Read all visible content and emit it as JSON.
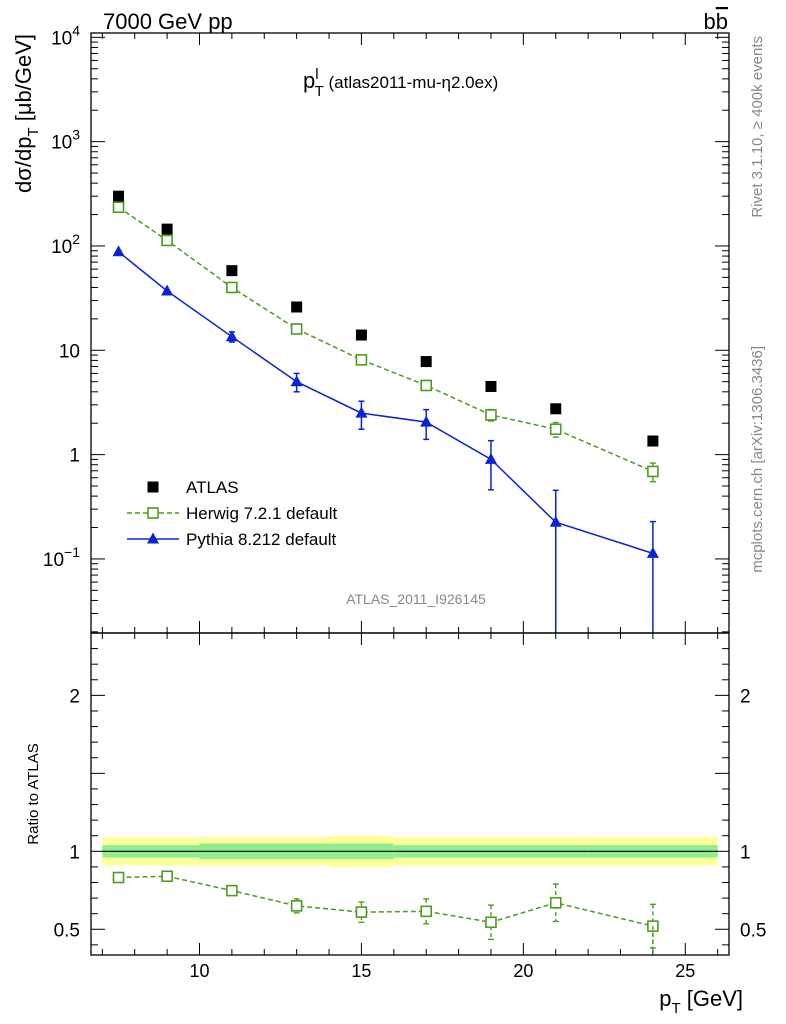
{
  "header": {
    "left": "7000 GeV pp",
    "right_base": "b",
    "right_bar": "b"
  },
  "side": {
    "top": "Rivet 3.1.10, ≥ 400k events",
    "bottom": "mcplots.cern.ch [arXiv:1306.3436]"
  },
  "watermark": "ATLAS_2011_I926145",
  "chart_data": [
    {
      "type": "scatter",
      "title": {
        "main": "p",
        "sup": "l",
        "sub": "T",
        "rest": " (atlas2011-mu-η2.0ex)"
      },
      "ylabel": {
        "main": "dσ/dp",
        "sub": "T",
        "rest": " [μb/GeV]"
      },
      "yscale": "log",
      "xlim": [
        6.65,
        26.35
      ],
      "ylim": [
        0.0195,
        11000
      ],
      "y_ticks": [
        {
          "v": 0.1,
          "base": "10",
          "exp": "−1"
        },
        {
          "v": 1,
          "base": "1",
          "exp": ""
        },
        {
          "v": 10,
          "base": "10",
          "exp": ""
        },
        {
          "v": 100,
          "base": "10",
          "exp": "2"
        },
        {
          "v": 1000,
          "base": "10",
          "exp": "3"
        },
        {
          "v": 10000,
          "base": "10",
          "exp": "4"
        }
      ],
      "legend_position": "lower-left",
      "series": [
        {
          "name": "ATLAS",
          "color": "#000000",
          "marker": "square-filled",
          "x": [
            7.5,
            9,
            11,
            13,
            15,
            17,
            19,
            21,
            24
          ],
          "y": [
            300,
            145,
            58,
            26,
            14,
            7.8,
            4.5,
            2.75,
            1.35
          ]
        },
        {
          "name": "Herwig 7.2.1 default",
          "color": "#4f9a20",
          "marker": "square-open",
          "line": "dashed",
          "x": [
            7.5,
            9,
            11,
            13,
            15,
            17,
            19,
            21,
            24
          ],
          "y": [
            235,
            113,
            40,
            16,
            8.1,
            4.6,
            2.4,
            1.75,
            0.69
          ],
          "err": [
            0,
            0,
            0,
            0,
            0,
            0,
            0.3,
            0.28,
            0.14
          ]
        },
        {
          "name": "Pythia 8.212 default",
          "color": "#0a23d6",
          "marker": "triangle-filled",
          "line": "solid",
          "x": [
            7.5,
            9,
            11,
            13,
            15,
            17,
            19,
            21,
            24
          ],
          "y": [
            88,
            37,
            13.5,
            5.0,
            2.5,
            2.05,
            0.9,
            0.225,
            0.113
          ],
          "err_lo": [
            0,
            0,
            1.5,
            1.0,
            0.75,
            0.65,
            0.44,
            0.21,
            0.1
          ],
          "err_hi": [
            0,
            0,
            1.5,
            1.0,
            0.75,
            0.65,
            0.46,
            0.23,
            0.115
          ]
        }
      ]
    },
    {
      "type": "scatter",
      "ylabel": "Ratio to ATLAS",
      "xlabel": {
        "main": "p",
        "sub": "T",
        "rest": " [GeV]"
      },
      "xlim": [
        6.65,
        26.35
      ],
      "ylim": [
        0.335,
        2.4
      ],
      "x_ticks": [
        10,
        15,
        20,
        25
      ],
      "y_ticks": [
        0.5,
        1,
        2
      ],
      "reference_line": 1,
      "bands": {
        "bin_edges": [
          7,
          10,
          14,
          16,
          22,
          26
        ],
        "stat_half_width": [
          0.04,
          0.05,
          0.05,
          0.04,
          0.04
        ],
        "total_half_width": [
          0.09,
          0.09,
          0.1,
          0.09,
          0.09
        ],
        "stat_color": "#90ee90",
        "total_color": "#ffff99"
      },
      "series": [
        {
          "name": "Herwig 7.2.1 default",
          "color": "#4f9a20",
          "marker": "square-open",
          "line": "dashed",
          "x": [
            7.5,
            9,
            11,
            13,
            15,
            17,
            19,
            21,
            24
          ],
          "y": [
            0.832,
            0.84,
            0.748,
            0.65,
            0.61,
            0.615,
            0.545,
            0.67,
            0.52
          ],
          "err": [
            0,
            0,
            0,
            0.045,
            0.065,
            0.08,
            0.11,
            0.12,
            0.14
          ]
        }
      ]
    }
  ]
}
